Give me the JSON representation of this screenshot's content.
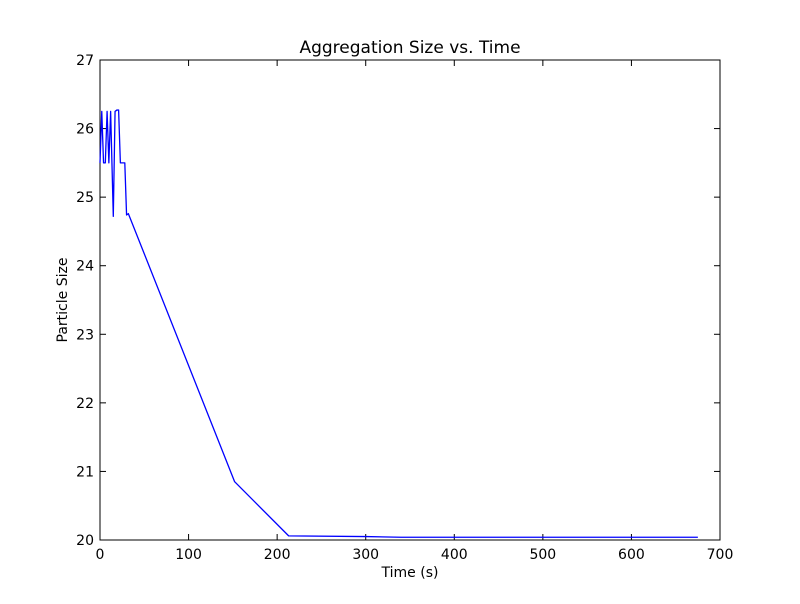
{
  "chart_data": {
    "type": "line",
    "title": "Aggregation Size vs. Time",
    "xlabel": "Time (s)",
    "ylabel": "Particle Size",
    "xlim": [
      0,
      700
    ],
    "ylim": [
      20,
      27
    ],
    "xticks": [
      0,
      100,
      200,
      300,
      400,
      500,
      600,
      700
    ],
    "yticks": [
      20,
      21,
      22,
      23,
      24,
      25,
      26,
      27
    ],
    "grid": false,
    "series": [
      {
        "color": "#0000ff",
        "x": [
          0,
          2,
          4,
          6,
          8,
          10,
          12,
          15,
          17,
          19,
          21,
          23,
          25,
          28,
          30,
          32,
          152,
          213,
          300,
          340,
          400,
          500,
          600,
          675
        ],
        "y": [
          25.5,
          26.25,
          25.5,
          25.5,
          26.25,
          25.5,
          26.25,
          24.72,
          26.25,
          26.27,
          26.27,
          25.5,
          25.5,
          25.5,
          24.74,
          24.76,
          20.85,
          20.06,
          20.05,
          20.04,
          20.04,
          20.04,
          20.04,
          20.04
        ]
      }
    ]
  }
}
